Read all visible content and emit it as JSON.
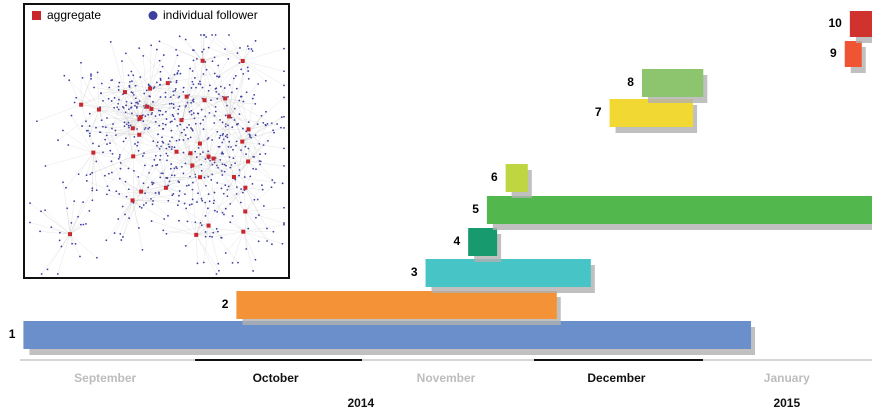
{
  "chart_data": {
    "type": "gantt",
    "inset_legend": [
      {
        "name": "aggregate",
        "color": "#c8282d"
      },
      {
        "name": "individual follower",
        "color": "#3c3f9f"
      }
    ],
    "categories": [
      "September",
      "October",
      "November",
      "December",
      "January"
    ],
    "category_colors": [
      "#bdbdbd",
      "#111111",
      "#bdbdbd",
      "#111111",
      "#bdbdbd"
    ],
    "years": [
      {
        "value": 2,
        "label": "2014"
      },
      {
        "value": 4.5,
        "label": "2015"
      }
    ],
    "xlim": [
      0,
      5
    ],
    "series": [
      {
        "name": "1",
        "color": "#6b8fca",
        "start": 0.02,
        "end": 4.29
      },
      {
        "name": "2",
        "color": "#f39237",
        "start": 1.27,
        "end": 3.15
      },
      {
        "name": "3",
        "color": "#47c4c6",
        "start": 2.38,
        "end": 3.35
      },
      {
        "name": "4",
        "color": "#179a6e",
        "start": 2.63,
        "end": 2.8
      },
      {
        "name": "5",
        "color": "#52b84e",
        "start": 2.74,
        "end": 5.0
      },
      {
        "name": "6",
        "color": "#c0d640",
        "start": 2.85,
        "end": 2.98
      },
      {
        "name": "7",
        "color": "#f2d832",
        "start": 3.46,
        "end": 3.95
      },
      {
        "name": "8",
        "color": "#8dc46e",
        "start": 3.65,
        "end": 4.01
      },
      {
        "name": "9",
        "color": "#ef5533",
        "start": 4.84,
        "end": 4.94
      },
      {
        "name": "10",
        "color": "#d0322d",
        "start": 4.87,
        "end": 5.0
      }
    ]
  }
}
